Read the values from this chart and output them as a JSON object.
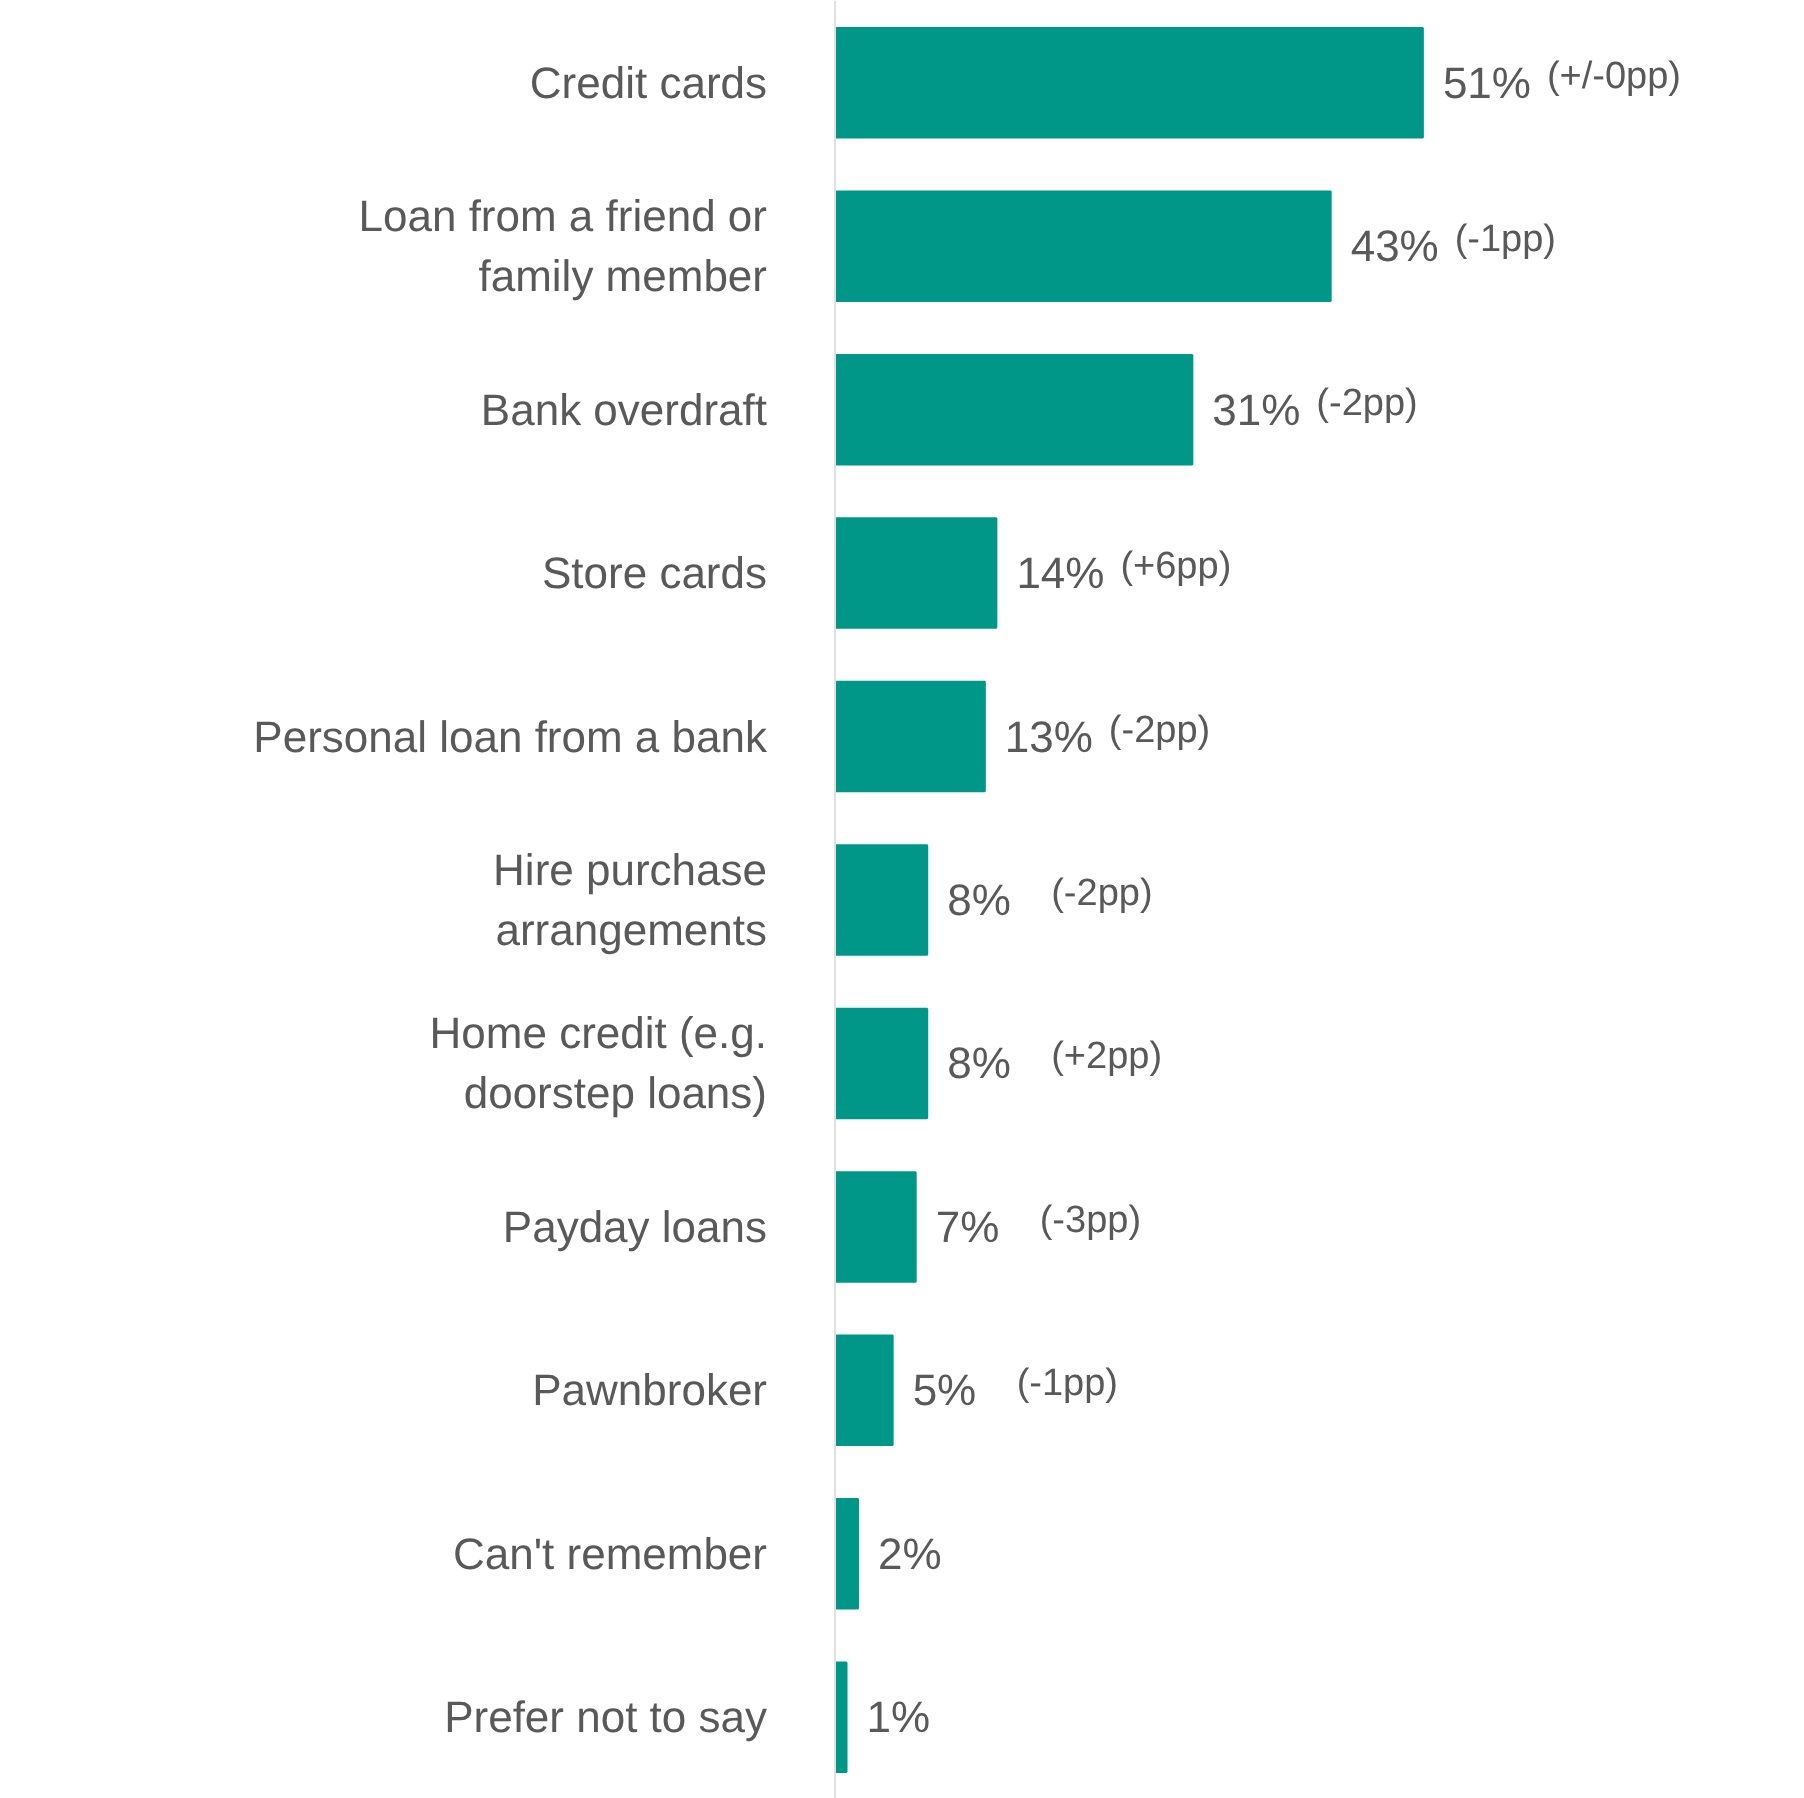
{
  "chart_data": {
    "type": "bar",
    "orientation": "horizontal",
    "categories": [
      "Credit cards",
      "Loan from a friend or\nfamily member",
      "Bank overdraft",
      "Store cards",
      "Personal loan from a bank",
      "Hire purchase\narrangements",
      "Home credit (e.g.\ndoorstep loans)",
      "Payday loans",
      "Pawnbroker",
      "Can't remember",
      "Prefer not to say"
    ],
    "values": [
      51,
      43,
      31,
      14,
      13,
      8,
      8,
      7,
      5,
      2,
      1
    ],
    "color": "#009688",
    "value_labels": [
      "51%",
      "43%",
      "31%",
      "14%",
      "13%",
      "8%",
      "8%",
      "7%",
      "5%",
      "2%",
      "1%"
    ],
    "annotations": [
      "(+/-0pp)",
      "(-1pp)",
      "(-2pp)",
      "(+6pp)",
      "(-2pp)",
      "(-2pp)",
      "(+2pp)",
      "(-3pp)",
      "(-1pp)"
    ],
    "tick_labels": "y",
    "grid": false
  }
}
